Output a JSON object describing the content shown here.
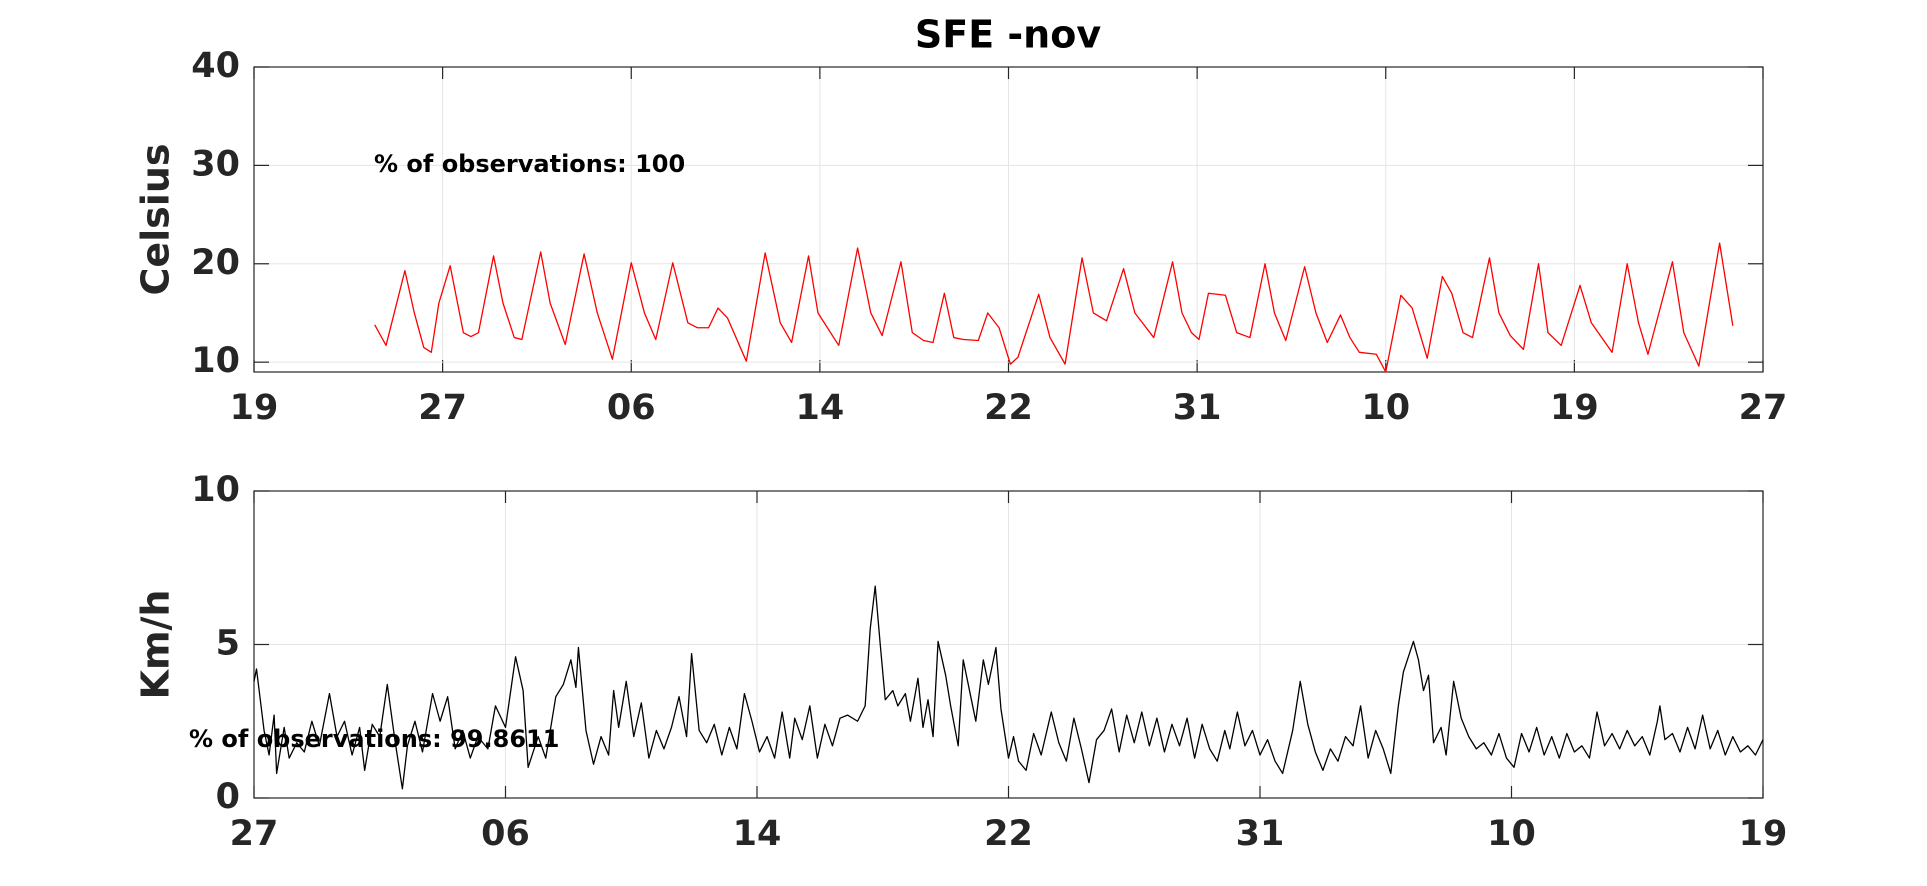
{
  "chart_data": [
    {
      "type": "line",
      "title": "SFE -nov",
      "ylabel": "Celsius",
      "annotation": "% of observations: 100",
      "color": "#ff0000",
      "grid": true,
      "xlim": [
        0,
        8
      ],
      "xticks": [
        {
          "value": 0,
          "label": "19"
        },
        {
          "value": 1,
          "label": "27"
        },
        {
          "value": 2,
          "label": "06"
        },
        {
          "value": 3,
          "label": "14"
        },
        {
          "value": 4,
          "label": "22"
        },
        {
          "value": 5,
          "label": "31"
        },
        {
          "value": 6,
          "label": "10"
        },
        {
          "value": 7,
          "label": "19"
        },
        {
          "value": 8,
          "label": "27"
        }
      ],
      "ylim": [
        9,
        40
      ],
      "yticks": [
        10,
        20,
        30,
        40
      ],
      "x": [
        0.64,
        0.7,
        0.8,
        0.85,
        0.9,
        0.94,
        0.98,
        1.04,
        1.11,
        1.15,
        1.19,
        1.27,
        1.32,
        1.38,
        1.42,
        1.52,
        1.57,
        1.65,
        1.75,
        1.82,
        1.9,
        2.0,
        2.07,
        2.13,
        2.22,
        2.3,
        2.35,
        2.41,
        2.46,
        2.51,
        2.61,
        2.71,
        2.79,
        2.85,
        2.94,
        2.99,
        3.1,
        3.2,
        3.27,
        3.33,
        3.43,
        3.49,
        3.55,
        3.6,
        3.66,
        3.71,
        3.76,
        3.84,
        3.89,
        3.95,
        4.01,
        4.05,
        4.16,
        4.22,
        4.3,
        4.39,
        4.45,
        4.52,
        4.61,
        4.67,
        4.77,
        4.87,
        4.92,
        4.97,
        5.01,
        5.06,
        5.15,
        5.21,
        5.28,
        5.36,
        5.41,
        5.47,
        5.57,
        5.63,
        5.69,
        5.76,
        5.81,
        5.86,
        5.95,
        6.0,
        6.08,
        6.14,
        6.22,
        6.3,
        6.35,
        6.41,
        6.46,
        6.55,
        6.6,
        6.66,
        6.73,
        6.81,
        6.86,
        6.93,
        7.03,
        7.09,
        7.2,
        7.28,
        7.34,
        7.39,
        7.52,
        7.58,
        7.66,
        7.77,
        7.84
      ],
      "values": [
        13.8,
        11.7,
        19.3,
        15,
        11.5,
        11,
        16,
        19.8,
        13,
        12.6,
        13,
        20.8,
        16,
        12.5,
        12.3,
        21.2,
        16,
        11.8,
        21,
        15,
        10.3,
        20.1,
        15,
        12.3,
        20.1,
        14,
        13.5,
        13.5,
        15.5,
        14.5,
        10.1,
        21.1,
        14,
        12,
        20.8,
        15,
        11.7,
        21.6,
        15,
        12.7,
        20.2,
        13,
        12.2,
        12,
        17,
        12.5,
        12.3,
        12.2,
        15,
        13.5,
        9.8,
        10.5,
        16.9,
        12.5,
        9.8,
        20.6,
        15,
        14.2,
        19.5,
        15,
        12.5,
        20.2,
        15,
        13,
        12.3,
        17,
        16.8,
        13,
        12.5,
        20,
        15,
        12.2,
        19.7,
        15,
        12,
        14.8,
        12.5,
        11,
        10.8,
        9,
        16.8,
        15.5,
        10.4,
        18.7,
        17,
        13,
        12.5,
        20.6,
        15,
        12.7,
        11.3,
        20,
        13,
        11.7,
        17.8,
        14,
        11,
        20,
        14,
        10.8,
        20.2,
        13,
        9.6,
        22.1,
        13.7
      ]
    },
    {
      "type": "line",
      "ylabel": "Km/h",
      "annotation": "% of observations: 99.8611",
      "color": "#000000",
      "grid": true,
      "xlim": [
        0,
        6
      ],
      "xticks": [
        {
          "value": 0,
          "label": "27"
        },
        {
          "value": 1,
          "label": "06"
        },
        {
          "value": 2,
          "label": "14"
        },
        {
          "value": 3,
          "label": "22"
        },
        {
          "value": 4,
          "label": "31"
        },
        {
          "value": 5,
          "label": "10"
        },
        {
          "value": 6,
          "label": "19"
        }
      ],
      "ylim": [
        0,
        10
      ],
      "yticks": [
        0,
        5,
        10
      ],
      "x": [
        0.0,
        0.01,
        0.04,
        0.06,
        0.08,
        0.09,
        0.12,
        0.14,
        0.17,
        0.2,
        0.23,
        0.26,
        0.3,
        0.33,
        0.36,
        0.39,
        0.42,
        0.44,
        0.47,
        0.5,
        0.53,
        0.56,
        0.59,
        0.61,
        0.64,
        0.67,
        0.71,
        0.74,
        0.77,
        0.8,
        0.83,
        0.86,
        0.89,
        0.93,
        0.96,
        1.0,
        1.04,
        1.07,
        1.09,
        1.13,
        1.16,
        1.2,
        1.23,
        1.26,
        1.28,
        1.29,
        1.32,
        1.35,
        1.38,
        1.41,
        1.43,
        1.45,
        1.48,
        1.51,
        1.54,
        1.57,
        1.6,
        1.63,
        1.66,
        1.69,
        1.72,
        1.74,
        1.77,
        1.8,
        1.83,
        1.86,
        1.89,
        1.92,
        1.95,
        1.98,
        2.01,
        2.04,
        2.07,
        2.1,
        2.13,
        2.15,
        2.18,
        2.21,
        2.24,
        2.27,
        2.3,
        2.33,
        2.36,
        2.4,
        2.43,
        2.45,
        2.47,
        2.49,
        2.51,
        2.54,
        2.56,
        2.59,
        2.61,
        2.64,
        2.66,
        2.68,
        2.7,
        2.72,
        2.75,
        2.77,
        2.8,
        2.82,
        2.85,
        2.87,
        2.9,
        2.92,
        2.95,
        2.97,
        3.0,
        3.02,
        3.04,
        3.07,
        3.1,
        3.13,
        3.17,
        3.2,
        3.23,
        3.26,
        3.29,
        3.32,
        3.35,
        3.38,
        3.41,
        3.44,
        3.47,
        3.5,
        3.53,
        3.56,
        3.59,
        3.62,
        3.65,
        3.68,
        3.71,
        3.74,
        3.77,
        3.8,
        3.83,
        3.86,
        3.88,
        3.91,
        3.94,
        3.97,
        4.0,
        4.03,
        4.06,
        4.09,
        4.13,
        4.16,
        4.19,
        4.22,
        4.25,
        4.28,
        4.31,
        4.34,
        4.37,
        4.4,
        4.43,
        4.46,
        4.49,
        4.52,
        4.55,
        4.57,
        4.59,
        4.61,
        4.63,
        4.65,
        4.67,
        4.69,
        4.72,
        4.74,
        4.77,
        4.8,
        4.83,
        4.86,
        4.89,
        4.92,
        4.95,
        4.98,
        5.01,
        5.04,
        5.07,
        5.1,
        5.13,
        5.16,
        5.19,
        5.22,
        5.25,
        5.28,
        5.31,
        5.34,
        5.37,
        5.4,
        5.43,
        5.46,
        5.49,
        5.52,
        5.55,
        5.58,
        5.59,
        5.61,
        5.64,
        5.67,
        5.7,
        5.73,
        5.76,
        5.79,
        5.82,
        5.85,
        5.88,
        5.91,
        5.94,
        5.97,
        6.0
      ],
      "values": [
        3.8,
        4.2,
        2.2,
        1.4,
        2.7,
        0.8,
        2.3,
        1.3,
        1.8,
        1.5,
        2.5,
        1.7,
        3.4,
        2.0,
        2.5,
        1.4,
        2.3,
        0.9,
        2.4,
        2.0,
        3.7,
        1.9,
        0.3,
        1.7,
        2.5,
        1.5,
        3.4,
        2.5,
        3.3,
        1.6,
        2.2,
        1.3,
        2.0,
        1.6,
        3.0,
        2.3,
        4.6,
        3.5,
        1.0,
        2.0,
        1.3,
        3.3,
        3.7,
        4.5,
        3.6,
        4.9,
        2.2,
        1.1,
        2.0,
        1.4,
        3.5,
        2.3,
        3.8,
        2.0,
        3.1,
        1.3,
        2.2,
        1.6,
        2.3,
        3.3,
        2.0,
        4.7,
        2.2,
        1.8,
        2.4,
        1.4,
        2.3,
        1.6,
        3.4,
        2.5,
        1.5,
        2.0,
        1.3,
        2.8,
        1.3,
        2.6,
        1.9,
        3.0,
        1.3,
        2.4,
        1.7,
        2.6,
        2.7,
        2.5,
        3.0,
        5.5,
        6.9,
        5.0,
        3.2,
        3.5,
        3.0,
        3.4,
        2.5,
        3.9,
        2.3,
        3.2,
        2.0,
        5.1,
        4.0,
        3.0,
        1.7,
        4.5,
        3.3,
        2.5,
        4.5,
        3.7,
        4.9,
        2.9,
        1.3,
        2.0,
        1.2,
        0.9,
        2.1,
        1.4,
        2.8,
        1.8,
        1.2,
        2.6,
        1.6,
        0.5,
        1.9,
        2.2,
        2.9,
        1.5,
        2.7,
        1.8,
        2.8,
        1.7,
        2.6,
        1.5,
        2.4,
        1.7,
        2.6,
        1.3,
        2.4,
        1.6,
        1.2,
        2.2,
        1.6,
        2.8,
        1.7,
        2.2,
        1.4,
        1.9,
        1.2,
        0.8,
        2.2,
        3.8,
        2.4,
        1.5,
        0.9,
        1.6,
        1.2,
        2.0,
        1.7,
        3.0,
        1.3,
        2.2,
        1.6,
        0.8,
        3.0,
        4.1,
        4.6,
        5.1,
        4.5,
        3.5,
        4.0,
        1.8,
        2.3,
        1.4,
        3.8,
        2.6,
        2.0,
        1.6,
        1.8,
        1.4,
        2.1,
        1.3,
        1.0,
        2.1,
        1.5,
        2.3,
        1.4,
        2.0,
        1.3,
        2.1,
        1.5,
        1.7,
        1.3,
        2.8,
        1.7,
        2.1,
        1.6,
        2.2,
        1.7,
        2.0,
        1.4,
        2.5,
        3.0,
        1.9,
        2.1,
        1.5,
        2.3,
        1.6,
        2.7,
        1.6,
        2.2,
        1.4,
        2.0,
        1.5,
        1.7,
        1.4,
        1.9
      ]
    }
  ]
}
